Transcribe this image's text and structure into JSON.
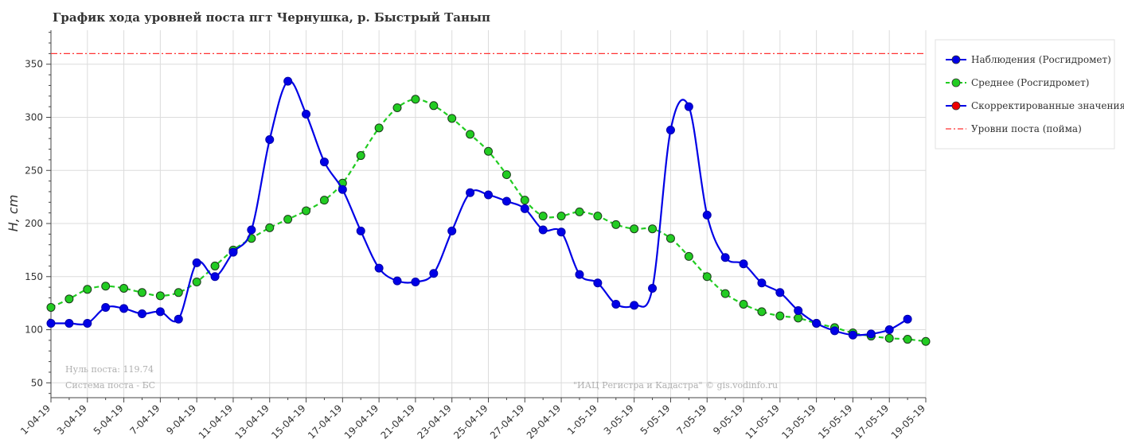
{
  "chart_data": {
    "type": "line",
    "title": "График хода уровней поста пгт Чернушка, р. Быстрый Танып",
    "ylabel": "H, cm",
    "ylim": [
      36,
      382
    ],
    "y_ticks": [
      50,
      100,
      150,
      200,
      250,
      300,
      350
    ],
    "x_tick_labels": [
      "1-04-19",
      "3-04-19",
      "5-04-19",
      "7-04-19",
      "9-04-19",
      "11-04-19",
      "13-04-19",
      "15-04-19",
      "17-04-19",
      "19-04-19",
      "21-04-19",
      "23-04-19",
      "25-04-19",
      "27-04-19",
      "29-04-19",
      "1-05-19",
      "3-05-19",
      "5-05-19",
      "7-05-19",
      "9-05-19",
      "11-05-19",
      "13-05-19",
      "15-05-19",
      "17-05-19",
      "19-05-19"
    ],
    "grid": true,
    "legend_position": "right",
    "series": [
      {
        "name": "Наблюдения (Росгидромет)",
        "color": "#0000e6",
        "style": "solid",
        "values": [
          106,
          106,
          106,
          121,
          120,
          115,
          117,
          110,
          163,
          150,
          173,
          194,
          279,
          334,
          303,
          258,
          232,
          193,
          158,
          146,
          145,
          153,
          193,
          229,
          227,
          221,
          214,
          194,
          192,
          152,
          144,
          124,
          123,
          139,
          288,
          310,
          208,
          168,
          162,
          144,
          135,
          118,
          106,
          99,
          95,
          96,
          100,
          110
        ]
      },
      {
        "name": "Среднее (Росгидромет)",
        "color": "#22cc22",
        "style": "dashed",
        "values": [
          121,
          129,
          138,
          141,
          139,
          135,
          132,
          135,
          145,
          160,
          175,
          186,
          196,
          204,
          212,
          222,
          238,
          264,
          290,
          309,
          317,
          311,
          299,
          284,
          268,
          246,
          222,
          207,
          207,
          211,
          207,
          199,
          195,
          195,
          186,
          169,
          150,
          134,
          124,
          117,
          113,
          111,
          106,
          102,
          97,
          94,
          92,
          91,
          89
        ]
      },
      {
        "name": "Скорректированные значения",
        "color": "#ee0000",
        "style": "marker",
        "values": []
      },
      {
        "name": "Уровни поста (пойма)",
        "color": "#ff3333",
        "style": "dashdot",
        "level": 360
      }
    ],
    "notes": [
      "Нуль поста: 119.74",
      "Система поста - БС",
      "\"ИАЦ Регистра и Кадастра\" © gis.vodinfo.ru"
    ]
  }
}
